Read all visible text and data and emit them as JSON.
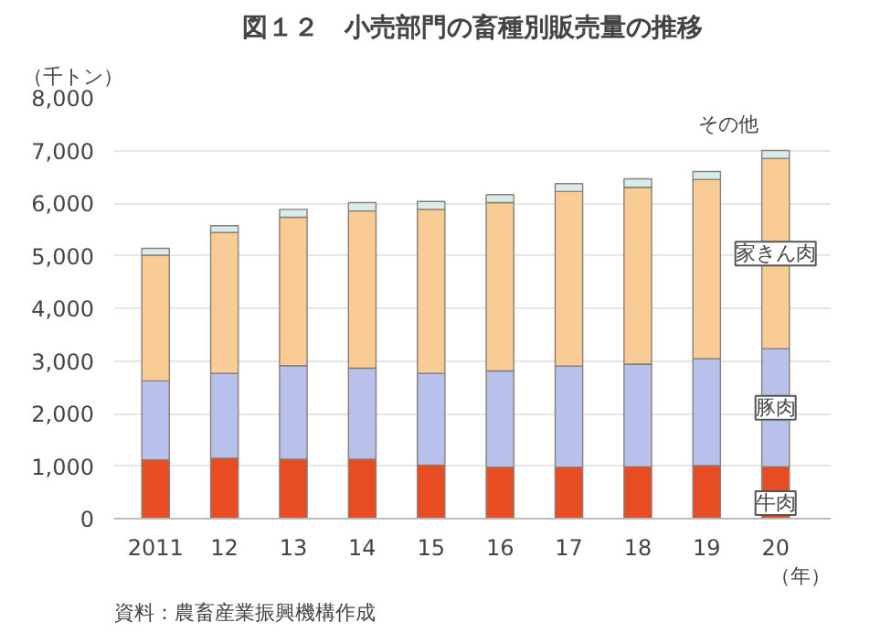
{
  "chart_data": {
    "type": "bar",
    "title": "図１２　小売部門の畜種別販売量の推移",
    "ylabel": "（千トン）",
    "xlabel": "（年）",
    "annotations": [
      "資料：農畜産業振興機構作成"
    ],
    "categories": [
      "2011",
      "12",
      "13",
      "14",
      "15",
      "16",
      "17",
      "18",
      "19",
      "20"
    ],
    "stacked": true,
    "grid": "y",
    "ylim": [
      0,
      8000
    ],
    "yticks": [
      0,
      {
        "value": 1000,
        "label": "1,000"
      },
      {
        "value": 2000,
        "label": "2,000"
      },
      {
        "value": 3000,
        "label": "3,000"
      },
      {
        "value": 4000,
        "label": "4,000"
      },
      {
        "value": 5000,
        "label": "5,000"
      },
      {
        "value": 6000,
        "label": "6,000"
      },
      {
        "value": 7000,
        "label": "7,000"
      },
      {
        "value": 8000,
        "label": "8,000"
      }
    ],
    "series": [
      {
        "name": "牛肉",
        "color": "#e84c22",
        "values": [
          1120,
          1150,
          1130,
          1130,
          1020,
          980,
          980,
          990,
          1010,
          990
        ]
      },
      {
        "name": "豚肉",
        "color": "#b8c0ec",
        "values": [
          1500,
          1610,
          1780,
          1730,
          1740,
          1830,
          1920,
          1950,
          2030,
          2240
        ]
      },
      {
        "name": "家きん肉",
        "color": "#f9cc96",
        "values": [
          2390,
          2680,
          2820,
          2990,
          3120,
          3200,
          3320,
          3360,
          3410,
          3620
        ]
      },
      {
        "name": "その他",
        "color": "#d8ecec",
        "values": [
          130,
          130,
          150,
          160,
          150,
          150,
          150,
          160,
          150,
          150
        ]
      }
    ]
  }
}
